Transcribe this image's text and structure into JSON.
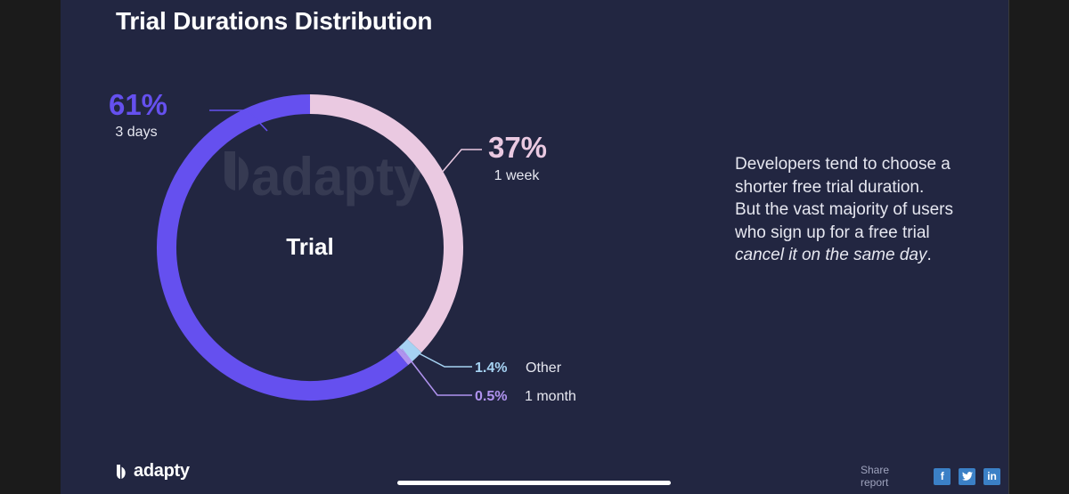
{
  "title": "Trial Durations Distribution",
  "chart_data": {
    "type": "pie",
    "style": "donut",
    "title": "Trial Durations Distribution",
    "center_label": "Trial",
    "slices": [
      {
        "label": "1 week",
        "percent_label": "37%",
        "value": 37,
        "color": "#eac9e1"
      },
      {
        "label": "Other",
        "percent_label": "1.4%",
        "value": 1.4,
        "color": "#a6d3f3"
      },
      {
        "label": "1 month",
        "percent_label": "0.5%",
        "value": 0.5,
        "color": "#b093ef"
      },
      {
        "label": "3 days",
        "percent_label": "61%",
        "value": 61,
        "color": "#6550ef"
      }
    ]
  },
  "watermark": "adapty",
  "description": {
    "line1": "Developers tend to choose a shorter free trial duration.",
    "line2_start": "But the vast majority of users who sign up for a free trial ",
    "line2_emphasis": "cancel it on the same day",
    "line2_end": "."
  },
  "footer": {
    "brand": "adapty",
    "share_label": "Share report",
    "social": [
      {
        "icon": "facebook-icon",
        "glyph": "f"
      },
      {
        "icon": "twitter-icon",
        "glyph": "t"
      },
      {
        "icon": "linkedin-icon",
        "glyph": "in"
      }
    ]
  }
}
